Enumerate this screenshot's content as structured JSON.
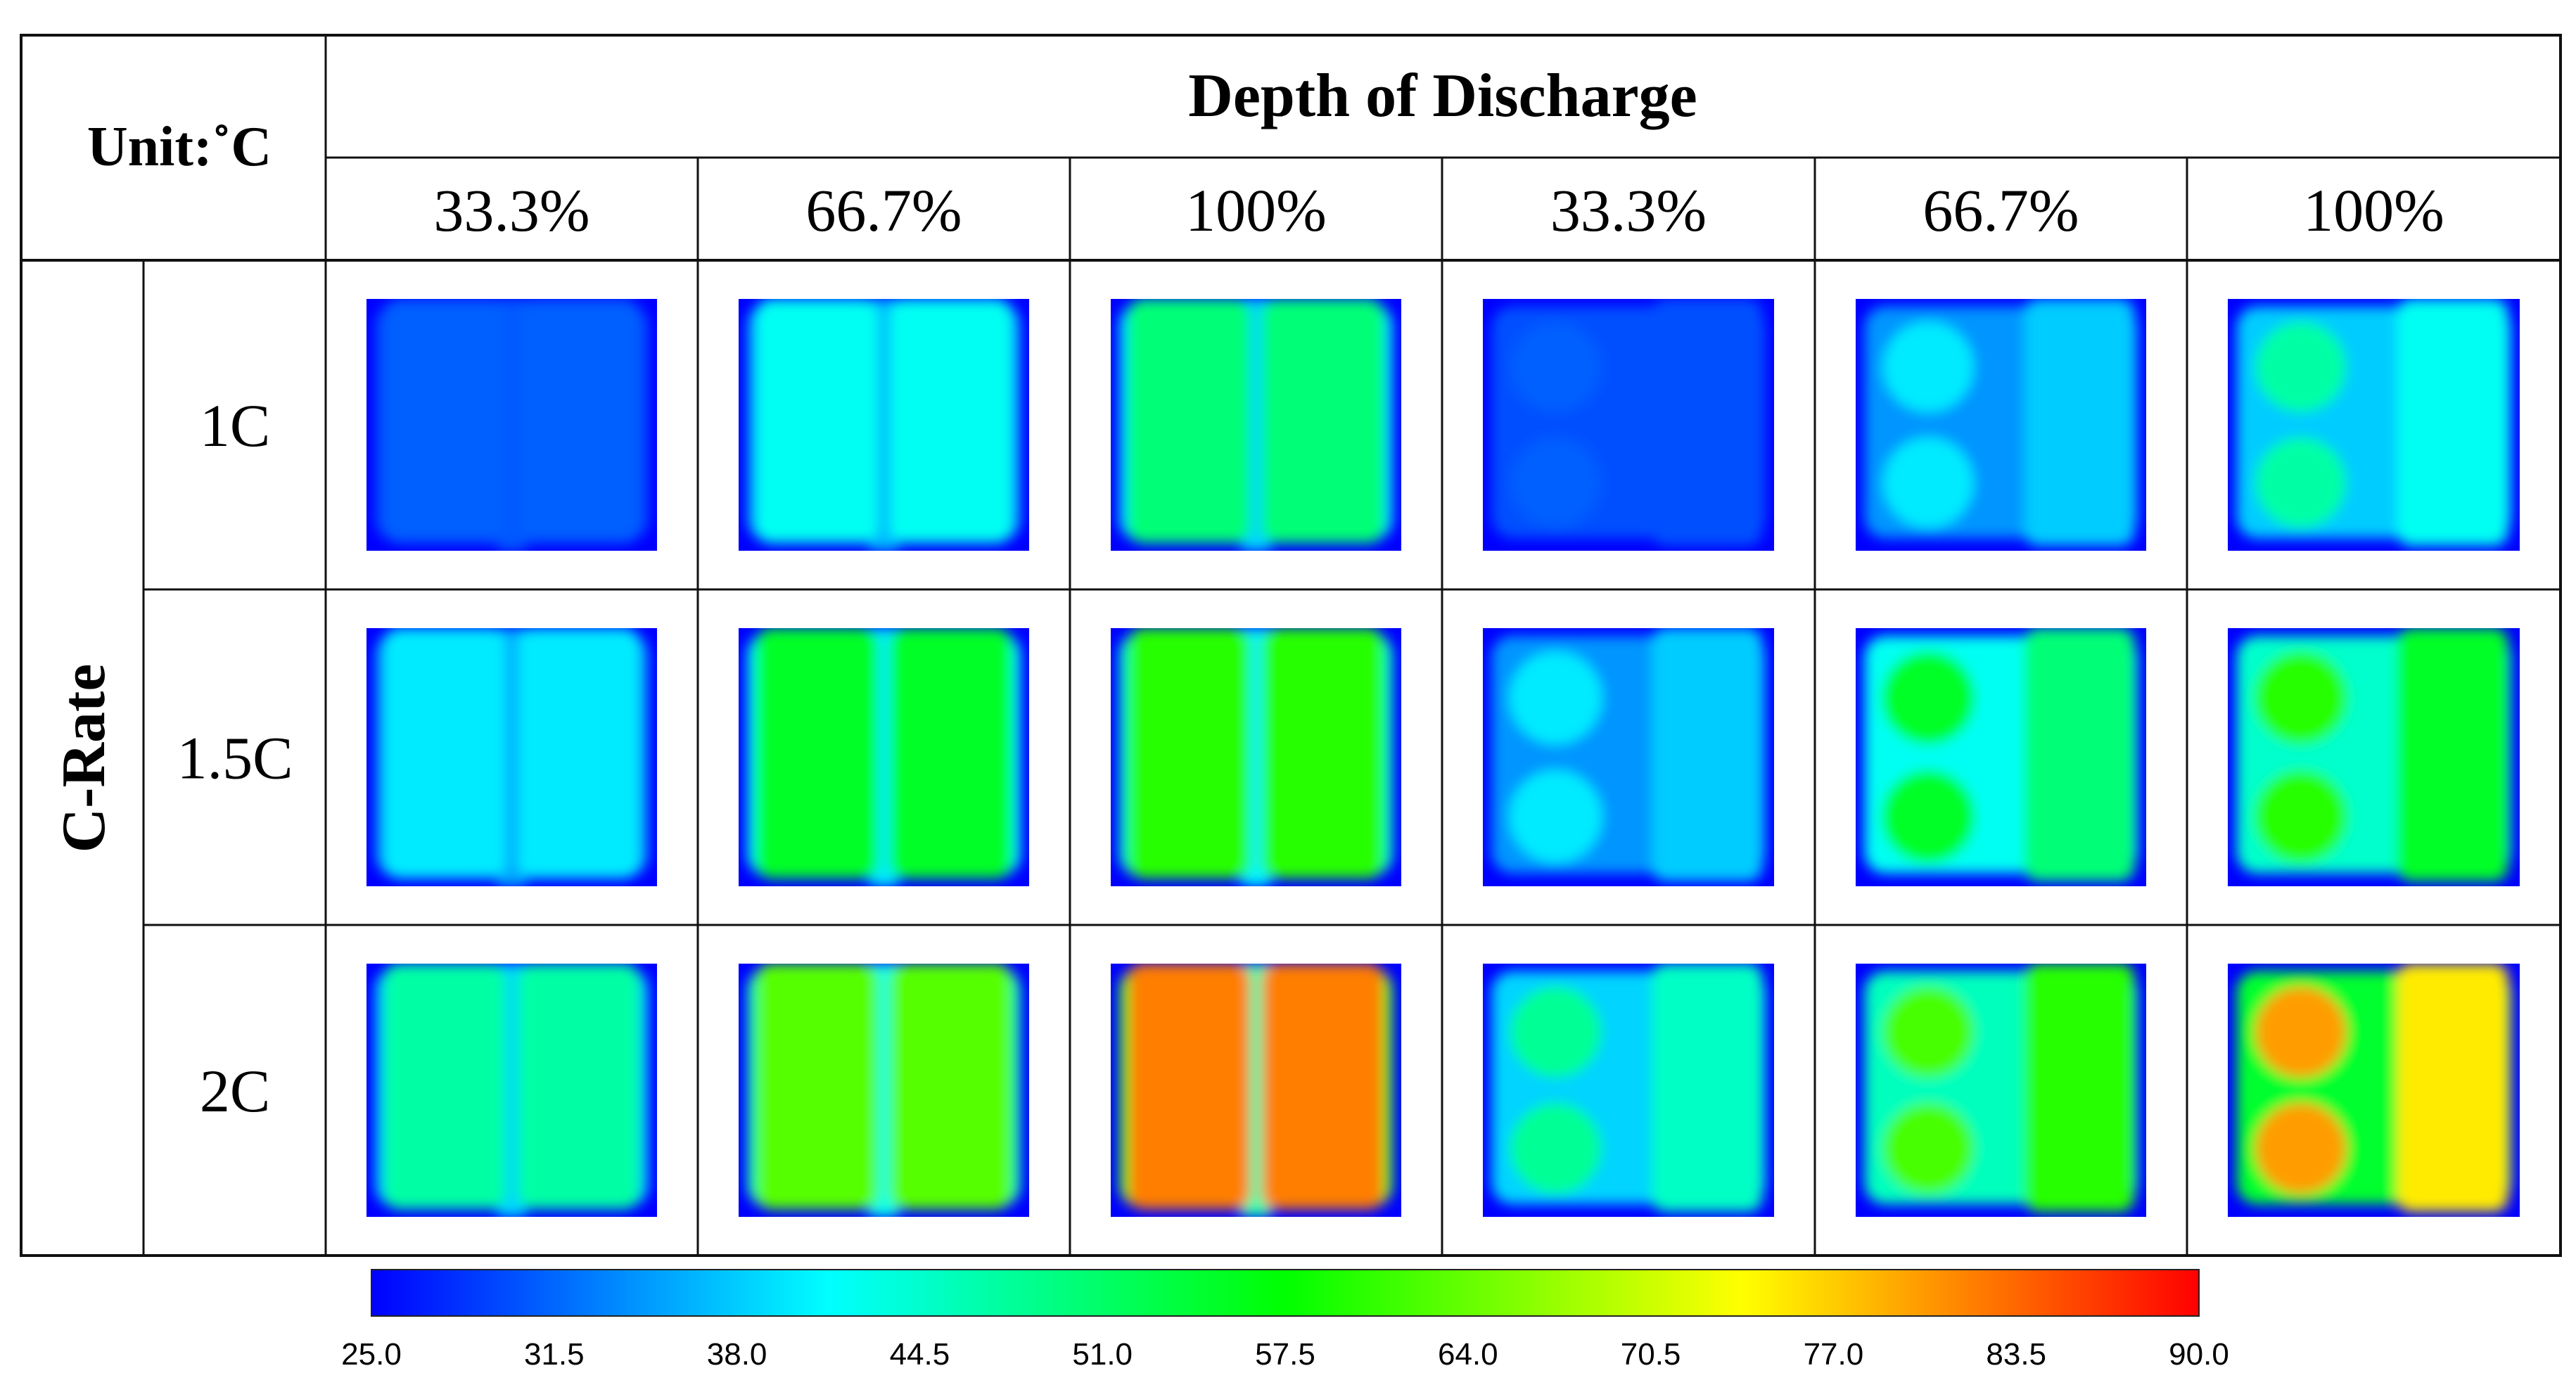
{
  "unit_label": "Unit:˚C",
  "header_title": "Depth of Discharge",
  "row_axis_label": "C-Rate",
  "dod_columns": [
    "33.3%",
    "66.7%",
    "100%",
    "33.3%",
    "66.7%",
    "100%"
  ],
  "c_rates": [
    "1C",
    "1.5C",
    "2C"
  ],
  "colorbar": {
    "min": 25.0,
    "max": 90.0,
    "tick_labels": [
      "25.0",
      "31.5",
      "38.0",
      "44.5",
      "51.0",
      "57.5",
      "64.0",
      "70.5",
      "77.0",
      "83.5",
      "90.0"
    ],
    "colors": [
      "#0000ff",
      "#0080ff",
      "#00ffff",
      "#00ff80",
      "#00ff00",
      "#80ff00",
      "#ffff00",
      "#ff8000",
      "#ff0000"
    ]
  },
  "cells": [
    {
      "row": "1C",
      "col": 0,
      "layout": "two-bars",
      "peak_temp": 31,
      "core_temp": 28
    },
    {
      "row": "1C",
      "col": 1,
      "layout": "two-bars",
      "peak_temp": 42,
      "core_temp": 40
    },
    {
      "row": "1C",
      "col": 2,
      "layout": "two-bars",
      "peak_temp": 50,
      "core_temp": 44
    },
    {
      "row": "1C",
      "col": 3,
      "layout": "circles-bar",
      "peak_temp": 31,
      "core_temp": 30
    },
    {
      "row": "1C",
      "col": 4,
      "layout": "circles-bar",
      "peak_temp": 40,
      "core_temp": 38
    },
    {
      "row": "1C",
      "col": 5,
      "layout": "circles-bar",
      "peak_temp": 47,
      "core_temp": 42
    },
    {
      "row": "1.5C",
      "col": 0,
      "layout": "two-bars",
      "peak_temp": 40,
      "core_temp": 38
    },
    {
      "row": "1.5C",
      "col": 1,
      "layout": "two-bars",
      "peak_temp": 55,
      "core_temp": 47
    },
    {
      "row": "1.5C",
      "col": 2,
      "layout": "two-bars",
      "peak_temp": 60,
      "core_temp": 48
    },
    {
      "row": "1.5C",
      "col": 3,
      "layout": "circles-bar",
      "peak_temp": 40,
      "core_temp": 38
    },
    {
      "row": "1.5C",
      "col": 4,
      "layout": "circles-bar",
      "peak_temp": 55,
      "core_temp": 50
    },
    {
      "row": "1.5C",
      "col": 5,
      "layout": "circles-bar",
      "peak_temp": 60,
      "core_temp": 55
    },
    {
      "row": "2C",
      "col": 0,
      "layout": "two-bars",
      "peak_temp": 47,
      "core_temp": 44
    },
    {
      "row": "2C",
      "col": 1,
      "layout": "two-bars",
      "peak_temp": 63,
      "core_temp": 52
    },
    {
      "row": "2C",
      "col": 2,
      "layout": "two-bars",
      "peak_temp": 82,
      "core_temp": 60
    },
    {
      "row": "2C",
      "col": 3,
      "layout": "circles-bar",
      "peak_temp": 48,
      "core_temp": 45
    },
    {
      "row": "2C",
      "col": 4,
      "layout": "circles-bar",
      "peak_temp": 62,
      "core_temp": 60
    },
    {
      "row": "2C",
      "col": 5,
      "layout": "circles-bar",
      "peak_temp": 80,
      "core_temp": 75
    }
  ]
}
